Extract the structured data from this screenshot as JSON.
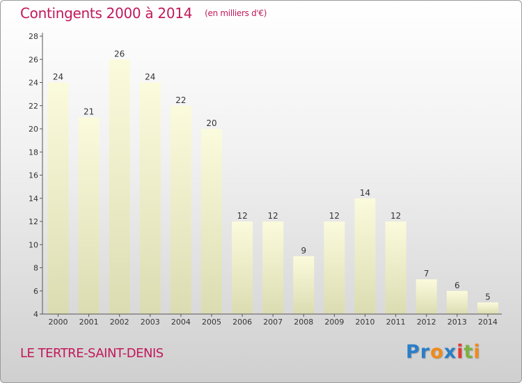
{
  "chart_data": {
    "type": "bar",
    "title": "Contingents 2000 à 2014",
    "subtitle": "(en milliers d'€)",
    "categories": [
      "2000",
      "2001",
      "2002",
      "2003",
      "2004",
      "2005",
      "2006",
      "2007",
      "2008",
      "2009",
      "2010",
      "2011",
      "2012",
      "2013",
      "2014"
    ],
    "values": [
      24,
      21,
      26,
      24,
      22,
      20,
      12,
      12,
      9,
      12,
      14,
      12,
      7,
      6,
      5
    ],
    "ylim": [
      4,
      28
    ],
    "yticks": [
      4,
      6,
      8,
      10,
      12,
      14,
      16,
      18,
      20,
      22,
      24,
      26,
      28
    ],
    "xlabel": "",
    "ylabel": "",
    "grid": false,
    "bar_color": "#f7f7cf",
    "bar_shadow_color": "#d8d8b0"
  },
  "footer": {
    "place": "LE TERTRE-SAINT-DENIS",
    "logo_letters": [
      {
        "ch": "P",
        "color": "#2a7ec8"
      },
      {
        "ch": "r",
        "color": "#2a7ec8"
      },
      {
        "ch": "o",
        "color": "#f08a1c"
      },
      {
        "ch": "x",
        "color": "#2a7ec8"
      },
      {
        "ch": "i",
        "color": "#e53935"
      },
      {
        "ch": "t",
        "color": "#7cb342"
      },
      {
        "ch": "i",
        "color": "#f08a1c"
      }
    ]
  },
  "colors": {
    "accent": "#c2185b",
    "axis": "#555555"
  }
}
